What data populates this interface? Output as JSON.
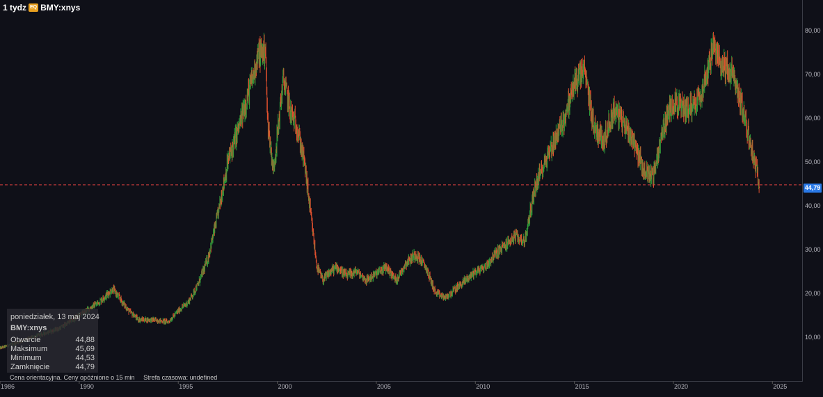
{
  "header": {
    "interval": "1 tydz",
    "badge": "EQ",
    "symbol": "BMY:xnys"
  },
  "tooltip": {
    "date": "poniedziałek, 13 maj 2024",
    "symbol": "BMY:xnys",
    "rows": [
      {
        "label": "Otwarcie",
        "value": "44,88"
      },
      {
        "label": "Maksimum",
        "value": "45,69"
      },
      {
        "label": "Minimum",
        "value": "44,53"
      },
      {
        "label": "Zamknięcie",
        "value": "44,79"
      }
    ]
  },
  "footer": {
    "note": "Cena orientacyjna. Ceny opóźnione o 15 min",
    "timezone": "Strefa czasowa: undefined"
  },
  "last_price_label": "44,79",
  "colors": {
    "up": "#2e9d3a",
    "down": "#e0502e",
    "price_line": "#e04040",
    "price_tag": "#2a7ae8"
  },
  "chart_data": {
    "type": "line",
    "title": "",
    "xlabel": "",
    "ylabel": "",
    "xlim": [
      1986,
      2026.5
    ],
    "ylim": [
      0,
      87
    ],
    "x_ticks": [
      "1986",
      "1990",
      "1995",
      "2000",
      "2005",
      "2010",
      "2015",
      "2020",
      "2025"
    ],
    "y_ticks": [
      "10,00",
      "20,00",
      "30,00",
      "40,00",
      "50,00",
      "60,00",
      "70,00",
      "80,00"
    ],
    "last_price": 44.79,
    "series": [
      {
        "x": [
          1986.0,
          1987.0,
          1988.0,
          1989.0,
          1990.0,
          1991.0,
          1991.7,
          1992.5,
          1993.0,
          1993.7,
          1994.5,
          1995.0,
          1995.5,
          1996.0,
          1996.5,
          1997.0,
          1997.5,
          1998.0,
          1998.5,
          1998.8,
          1999.0,
          1999.4,
          1999.5,
          1999.8,
          2000.0,
          2000.3,
          2000.7,
          2001.0,
          2001.4,
          2002.0,
          2002.3,
          2002.7,
          2003.0,
          2003.5,
          2004.0,
          2004.5,
          2005.0,
          2005.5,
          2006.0,
          2006.5,
          2007.0,
          2007.5,
          2008.0,
          2008.5,
          2009.0,
          2009.5,
          2010.0,
          2010.5,
          2011.0,
          2011.5,
          2012.0,
          2012.5,
          2013.0,
          2013.5,
          2014.0,
          2014.5,
          2015.0,
          2015.5,
          2016.0,
          2016.5,
          2017.0,
          2017.5,
          2018.0,
          2018.5,
          2019.0,
          2019.5,
          2020.0,
          2020.5,
          2021.0,
          2021.5,
          2022.0,
          2022.5,
          2023.0,
          2023.5,
          2024.0,
          2024.36
        ],
        "values": [
          7.5,
          9.0,
          10.5,
          12.0,
          15.0,
          18.0,
          21.0,
          16.0,
          14.0,
          14.0,
          13.5,
          16.0,
          18.0,
          22.0,
          28.0,
          38.0,
          50.0,
          57.0,
          65.0,
          70.0,
          74.0,
          76.0,
          60.0,
          48.0,
          56.0,
          69.0,
          61.0,
          58.0,
          49.0,
          26.0,
          23.0,
          25.0,
          26.0,
          24.0,
          25.0,
          23.0,
          24.5,
          26.0,
          23.0,
          27.0,
          29.0,
          26.0,
          20.0,
          19.0,
          21.0,
          23.0,
          25.0,
          26.0,
          29.0,
          31.0,
          33.0,
          32.0,
          44.0,
          50.0,
          55.0,
          60.0,
          68.0,
          71.0,
          58.0,
          55.0,
          62.0,
          59.0,
          55.0,
          48.0,
          47.0,
          58.0,
          64.0,
          62.0,
          63.0,
          67.0,
          76.0,
          72.0,
          70.0,
          62.0,
          52.0,
          44.79
        ]
      }
    ]
  }
}
